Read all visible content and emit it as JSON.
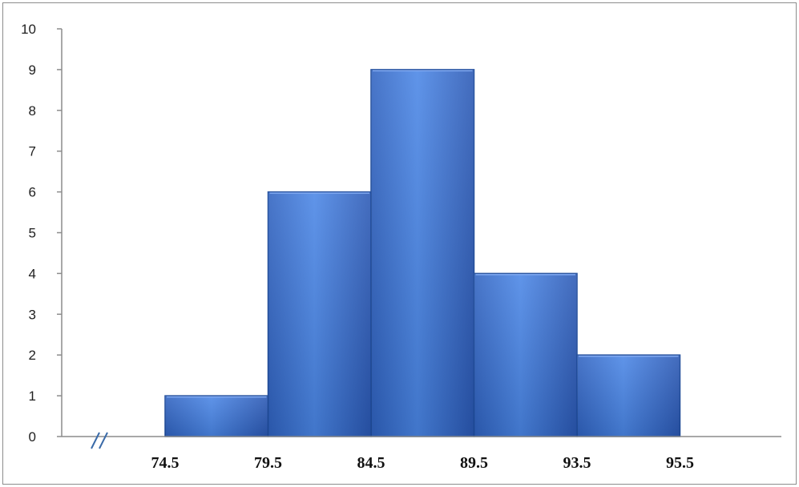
{
  "chart_data": {
    "type": "bar",
    "histogram": true,
    "bin_edges": [
      74.5,
      79.5,
      84.5,
      89.5,
      93.5,
      95.5
    ],
    "values": [
      1,
      6,
      9,
      4,
      2
    ],
    "x_tick_labels": [
      "74.5",
      "79.5",
      "84.5",
      "89.5",
      "93.5",
      "95.5"
    ],
    "y_tick_labels": [
      "0",
      "1",
      "2",
      "3",
      "4",
      "5",
      "6",
      "7",
      "8",
      "9",
      "10"
    ],
    "ylim": [
      0,
      10
    ],
    "title": "",
    "xlabel": "",
    "ylabel": "",
    "grid": false,
    "axis_break": true,
    "bar_color": "#3d78d8",
    "bar_edge_color": "#1d4a9a"
  }
}
